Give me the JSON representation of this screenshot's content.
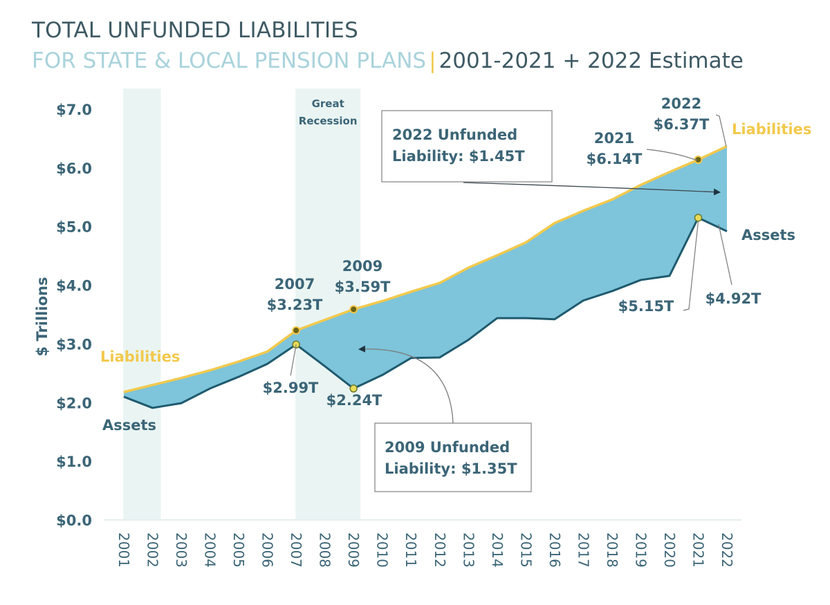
{
  "header": {
    "title": "TOTAL UNFUNDED LIABILITIES",
    "subtitle": "FOR STATE & LOCAL PENSION PLANS",
    "separator": "|",
    "range": "2001-2021 + 2022 Estimate"
  },
  "chart_data": {
    "type": "area",
    "title": "TOTAL UNFUNDED LIABILITIES FOR STATE & LOCAL PENSION PLANS | 2001-2021 + 2022 Estimate",
    "xlabel": "",
    "ylabel": "$ Trillions",
    "ylim": [
      0,
      7
    ],
    "yticks": [
      0,
      1,
      2,
      3,
      4,
      5,
      6,
      7
    ],
    "ytick_labels": [
      "$0.0",
      "$1.0",
      "$2.0",
      "$3.0",
      "$4.0",
      "$5.0",
      "$6.0",
      "$7.0"
    ],
    "x": [
      "2001",
      "2002",
      "2003",
      "2004",
      "2005",
      "2006",
      "2007",
      "2008",
      "2009",
      "2010",
      "2011",
      "2012",
      "2013",
      "2014",
      "2015",
      "2016",
      "2017",
      "2018",
      "2019",
      "2020",
      "2021",
      "2022"
    ],
    "series": [
      {
        "name": "Liabilities",
        "color": "#f2c94c",
        "values": [
          2.18,
          2.3,
          2.42,
          2.55,
          2.7,
          2.87,
          3.23,
          3.41,
          3.59,
          3.73,
          3.89,
          4.04,
          4.3,
          4.51,
          4.73,
          5.06,
          5.27,
          5.46,
          5.71,
          5.93,
          6.14,
          6.37
        ]
      },
      {
        "name": "Assets",
        "color": "#1f5a6e",
        "values": [
          2.1,
          1.91,
          1.99,
          2.24,
          2.44,
          2.66,
          2.99,
          2.62,
          2.24,
          2.47,
          2.76,
          2.77,
          3.07,
          3.44,
          3.44,
          3.42,
          3.74,
          3.9,
          4.09,
          4.16,
          5.15,
          4.92
        ]
      }
    ],
    "fill_between": {
      "label": "Unfunded liability",
      "color": "#7ec4da"
    },
    "shaded_periods": [
      {
        "start": "2001",
        "end": "2002",
        "label": "",
        "color": "#eaf5f3"
      },
      {
        "start": "2007",
        "end": "2009",
        "label": "Great Recession",
        "color": "#eaf5f3"
      }
    ],
    "series_labels": {
      "liabilities_left": "Liabilities",
      "assets_left": "Assets",
      "liabilities_right": "Liabilities",
      "assets_right": "Assets"
    },
    "annotations": [
      {
        "id": "l2007",
        "year": "2007",
        "line1": "2007",
        "line2": "$3.23T",
        "series": "Liabilities"
      },
      {
        "id": "l2009",
        "year": "2009",
        "line1": "2009",
        "line2": "$3.59T",
        "series": "Liabilities"
      },
      {
        "id": "l2021",
        "year": "2021",
        "line1": "2021",
        "line2": "$6.14T",
        "series": "Liabilities"
      },
      {
        "id": "l2022",
        "year": "2022",
        "line1": "2022",
        "line2": "$6.37T",
        "series": "Liabilities"
      },
      {
        "id": "a2007",
        "year": "2007",
        "line1": "$2.99T",
        "series": "Assets"
      },
      {
        "id": "a2009",
        "year": "2009",
        "line1": "$2.24T",
        "series": "Assets"
      },
      {
        "id": "a2021",
        "year": "2021",
        "line1": "$5.15T",
        "series": "Assets"
      },
      {
        "id": "a2022",
        "year": "2022",
        "line1": "$4.92T",
        "series": "Assets"
      }
    ],
    "callouts": [
      {
        "line1": "2022 Unfunded",
        "line2": "Liability: $1.45T",
        "target_year": "2022"
      },
      {
        "line1": "2009 Unfunded",
        "line2": "Liability: $1.35T",
        "target_year": "2009"
      }
    ],
    "grid": false,
    "legend": "none"
  }
}
